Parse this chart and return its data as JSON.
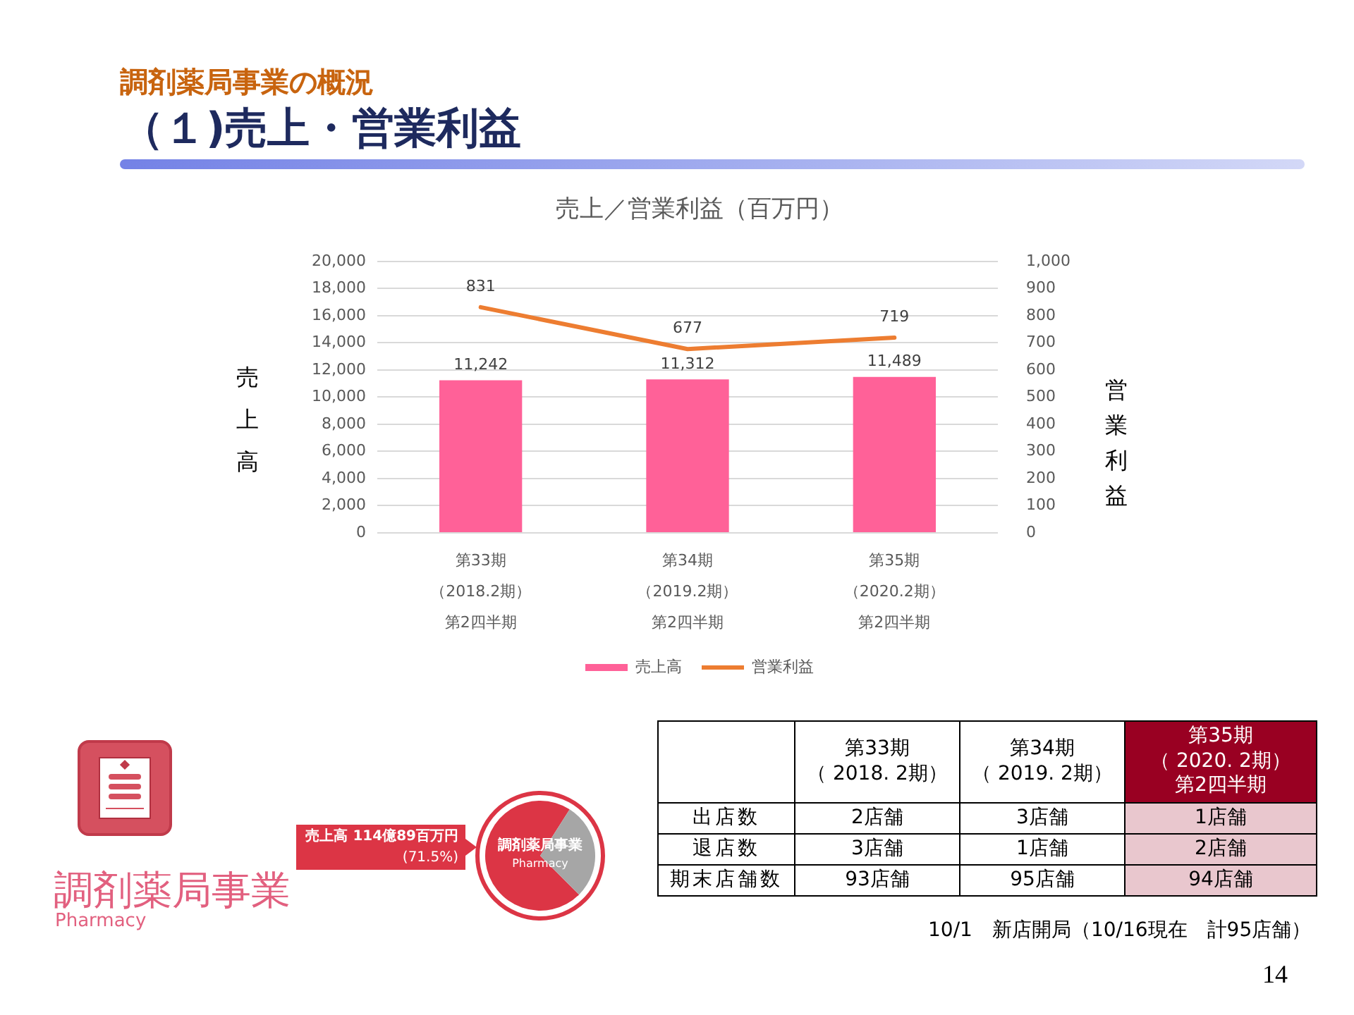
{
  "chart_data": [
    {
      "type": "bar",
      "title": "売上／営業利益（百万円）",
      "ylabel": "売上高",
      "y2label": "営業利益",
      "categories": [
        "第33期（2018.2期）第2四半期",
        "第34期（2019.2期）第2四半期",
        "第35期（2020.2期）第2四半期"
      ],
      "series": [
        {
          "name": "売上高",
          "type": "bar",
          "color": "#ff6198",
          "values": [
            11242,
            11312,
            11489
          ],
          "value_labels": [
            "11,242",
            "11,312",
            "11,489"
          ]
        },
        {
          "name": "営業利益",
          "type": "line",
          "axis": "y2",
          "color": "#ed7d31",
          "values": [
            831,
            677,
            719
          ],
          "value_labels": [
            "831",
            "677",
            "719"
          ]
        }
      ],
      "ylim": [
        0,
        20000
      ],
      "yticks": [
        0,
        {
          "value": 2000,
          "label": "2,000"
        },
        {
          "value": 4000,
          "label": "4,000"
        },
        {
          "value": 6000,
          "label": "6,000"
        },
        {
          "value": 8000,
          "label": "8,000"
        },
        {
          "value": 10000,
          "label": "10,000"
        },
        {
          "value": 12000,
          "label": "12,000"
        },
        {
          "value": 14000,
          "label": "14,000"
        },
        {
          "value": 16000,
          "label": "16,000"
        },
        {
          "value": 18000,
          "label": "18,000"
        },
        {
          "value": 20000,
          "label": "20,000"
        }
      ],
      "y2lim": [
        0,
        1000
      ],
      "y2ticks": [
        0,
        100,
        200,
        300,
        400,
        500,
        600,
        700,
        800,
        900,
        {
          "value": 1000,
          "label": "1,000"
        }
      ],
      "grid": "y",
      "legend": "bottom",
      "annotations": [
        "調剤薬局事業の概況",
        "（１)売上・営業利益"
      ]
    },
    {
      "type": "pie",
      "categories": [
        "調剤薬局事業\nPharmacy",
        null
      ],
      "values": [
        71.5,
        28.5
      ],
      "colors": [
        "#dc3545",
        "#a6a6a6"
      ],
      "annotations": [
        "調剤薬局事業",
        "Pharmacy",
        "売上高 114億89百万円",
        "(71.5%)"
      ]
    },
    {
      "type": "other",
      "categories": [
        "第33期（ 2018. 2期）",
        "第34期（ 2019. 2期）",
        "第35期（ 2020. 2期）第2四半期"
      ],
      "y_categories": [
        "出店数",
        "退店数",
        "期末店舗数"
      ],
      "cell_labels": [
        [
          "2店舗",
          "3店舗",
          "1店舗"
        ],
        [
          "3店舗",
          "1店舗",
          "2店舗"
        ],
        [
          "93店舗",
          "95店舗",
          "94店舗"
        ]
      ],
      "colors": [
        "#ffffff",
        "#ffffff",
        "#990022"
      ],
      "annotations": [
        "10/1　新店開局（10/16現在　計95店舗）",
        "14"
      ]
    }
  ]
}
